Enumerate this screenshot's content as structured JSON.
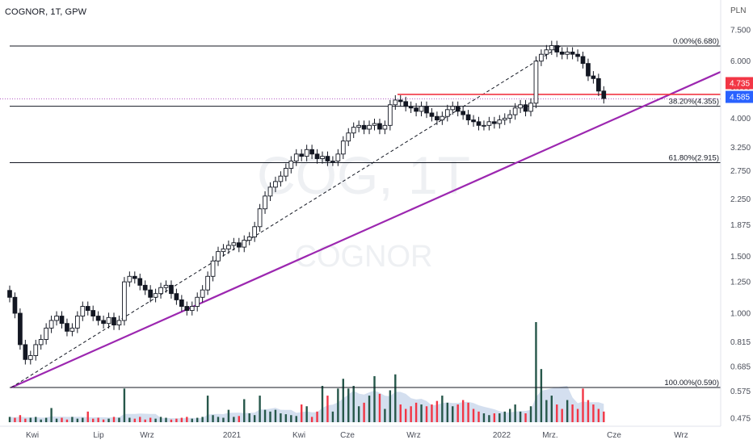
{
  "header": {
    "title": "COGNOR, 1T, GPW",
    "currency": "PLN"
  },
  "watermark": {
    "symbol": "COG, 1T",
    "name": "COGNOR"
  },
  "colors": {
    "up": "#131722",
    "down": "#131722",
    "trendline": "#9c27b0",
    "resistance": "#f23645",
    "vol_up": "#26574a",
    "vol_down": "#f23645",
    "vol_area": "#c6d4ea",
    "fib": "#131722"
  },
  "badges": {
    "red": "4.735",
    "blue": "4.585"
  },
  "chart_data": {
    "type": "candlestick",
    "scale": "log",
    "ylim": [
      0.45,
      7.8
    ],
    "y_ticks": [
      "7.500",
      "6.000",
      "5.000",
      "4.000",
      "3.250",
      "2.750",
      "2.250",
      "1.875",
      "1.500",
      "1.250",
      "1.000",
      "0.815",
      "0.685",
      "0.575",
      "0.475"
    ],
    "x_ticks": [
      "Kwi",
      "Lip",
      "Wrz",
      "2021",
      "Kwi",
      "Cze",
      "Wrz",
      "2022",
      "Mrz.",
      "Cze",
      "Wrz"
    ],
    "fib_levels": [
      {
        "label": "0.00%(6.680)",
        "value": 6.68
      },
      {
        "label": "38.20%(4.355)",
        "value": 4.355
      },
      {
        "label": "61.80%(2.915)",
        "value": 2.915
      },
      {
        "label": "100.00%(0.590)",
        "value": 0.59
      }
    ],
    "resistance": 4.735,
    "last_price": 4.585,
    "closes": [
      1.12,
      1.0,
      0.8,
      0.72,
      0.74,
      0.8,
      0.83,
      0.9,
      0.95,
      0.98,
      0.93,
      0.88,
      0.9,
      0.98,
      1.05,
      1.02,
      0.98,
      0.95,
      0.93,
      0.97,
      0.92,
      0.95,
      1.25,
      1.3,
      1.28,
      1.22,
      1.18,
      1.12,
      1.15,
      1.2,
      1.22,
      1.15,
      1.1,
      1.05,
      1.02,
      1.05,
      1.12,
      1.18,
      1.3,
      1.45,
      1.55,
      1.58,
      1.62,
      1.65,
      1.6,
      1.68,
      1.72,
      1.85,
      2.1,
      2.3,
      2.45,
      2.55,
      2.65,
      2.8,
      2.95,
      3.1,
      3.05,
      3.2,
      3.1,
      3.0,
      3.05,
      2.95,
      2.95,
      3.1,
      3.4,
      3.6,
      3.75,
      3.8,
      3.7,
      3.8,
      3.85,
      3.7,
      3.8,
      4.4,
      4.55,
      4.5,
      4.35,
      4.3,
      4.2,
      4.35,
      4.15,
      4.05,
      3.95,
      4.05,
      4.25,
      4.35,
      4.2,
      4.1,
      3.95,
      3.9,
      3.8,
      3.8,
      3.9,
      3.85,
      3.95,
      4.0,
      4.1,
      4.3,
      4.4,
      4.2,
      4.45,
      6.0,
      6.3,
      6.5,
      6.7,
      6.4,
      6.3,
      6.4,
      6.3,
      6.2,
      5.9,
      5.4,
      5.3,
      4.85,
      4.6
    ],
    "volumes": [
      0.6,
      0.5,
      0.8,
      0.4,
      0.5,
      0.6,
      0.3,
      0.5,
      1.6,
      0.4,
      0.5,
      0.3,
      0.6,
      0.4,
      0.5,
      1.2,
      0.4,
      0.5,
      0.3,
      0.4,
      0.6,
      0.5,
      3.8,
      0.5,
      0.4,
      0.6,
      0.3,
      0.5,
      0.4,
      0.6,
      0.5,
      0.3,
      0.4,
      0.5,
      0.6,
      0.4,
      0.5,
      0.6,
      3.0,
      0.8,
      0.6,
      0.5,
      1.4,
      0.6,
      0.7,
      2.6,
      1.0,
      0.8,
      3.0,
      1.4,
      1.2,
      1.4,
      1.0,
      0.9,
      0.8,
      0.7,
      2.0,
      1.8,
      0.6,
      1.2,
      4.1,
      3.0,
      1.2,
      3.8,
      4.9,
      3.8,
      4.1,
      1.8,
      2.2,
      3.0,
      5.2,
      3.2,
      1.5,
      3.6,
      5.4,
      2.0,
      1.5,
      1.8,
      2.2,
      2.0,
      1.8,
      2.0,
      2.4,
      3.0,
      2.2,
      1.8,
      2.0,
      2.5,
      2.2,
      1.5,
      1.2,
      1.0,
      0.8,
      1.0,
      1.0,
      1.2,
      1.5,
      2.0,
      1.2,
      1.0,
      1.8,
      11.3,
      6.0,
      2.5,
      3.0,
      2.0,
      1.5,
      2.5,
      2.0,
      1.5,
      3.8,
      2.5,
      2.0,
      1.5,
      1.2
    ]
  }
}
